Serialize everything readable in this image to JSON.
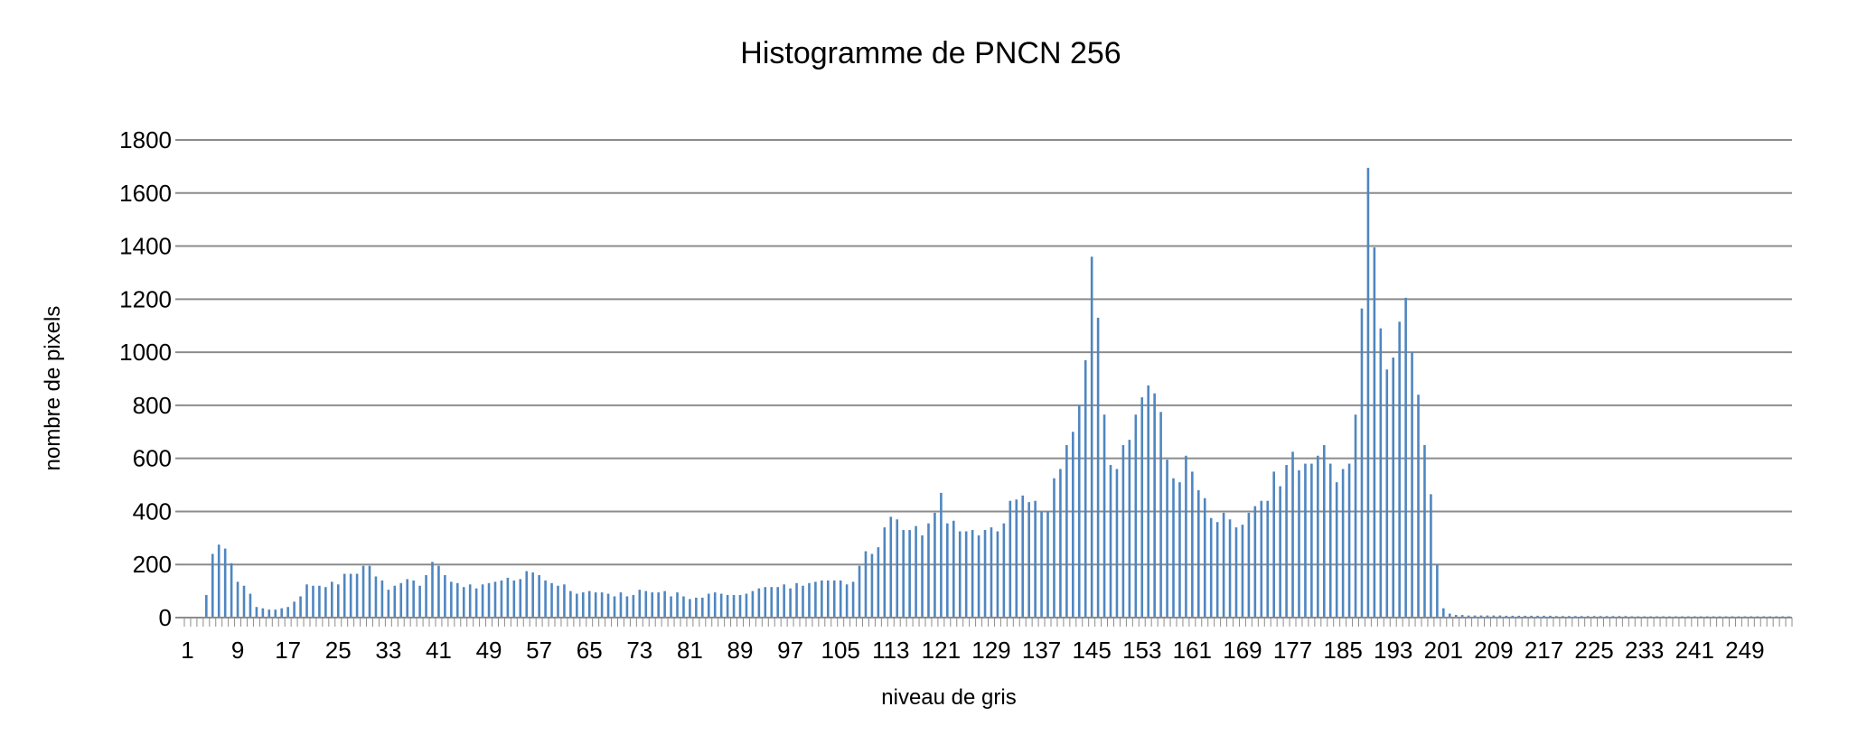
{
  "chart_data": {
    "type": "bar",
    "title": "Histogramme de PNCN 256",
    "xlabel": "niveau de gris",
    "ylabel": "nombre  de  pixels",
    "ylim": [
      0,
      1800
    ],
    "yticks": [
      0,
      200,
      400,
      600,
      800,
      1000,
      1200,
      1400,
      1600,
      1800
    ],
    "xtick_labels": [
      "1",
      "9",
      "17",
      "25",
      "33",
      "41",
      "49",
      "57",
      "65",
      "73",
      "81",
      "89",
      "97",
      "105",
      "113",
      "121",
      "129",
      "137",
      "145",
      "153",
      "161",
      "169",
      "177",
      "185",
      "193",
      "201",
      "209",
      "217",
      "225",
      "233",
      "241",
      "249"
    ],
    "grid": "horizontal",
    "legend": "none",
    "color": "#4f86c0",
    "x": [
      1,
      2,
      3,
      4,
      5,
      6,
      7,
      8,
      9,
      10,
      11,
      12,
      13,
      14,
      15,
      16,
      17,
      18,
      19,
      20,
      21,
      22,
      23,
      24,
      25,
      26,
      27,
      28,
      29,
      30,
      31,
      32,
      33,
      34,
      35,
      36,
      37,
      38,
      39,
      40,
      41,
      42,
      43,
      44,
      45,
      46,
      47,
      48,
      49,
      50,
      51,
      52,
      53,
      54,
      55,
      56,
      57,
      58,
      59,
      60,
      61,
      62,
      63,
      64,
      65,
      66,
      67,
      68,
      69,
      70,
      71,
      72,
      73,
      74,
      75,
      76,
      77,
      78,
      79,
      80,
      81,
      82,
      83,
      84,
      85,
      86,
      87,
      88,
      89,
      90,
      91,
      92,
      93,
      94,
      95,
      96,
      97,
      98,
      99,
      100,
      101,
      102,
      103,
      104,
      105,
      106,
      107,
      108,
      109,
      110,
      111,
      112,
      113,
      114,
      115,
      116,
      117,
      118,
      119,
      120,
      121,
      122,
      123,
      124,
      125,
      126,
      127,
      128,
      129,
      130,
      131,
      132,
      133,
      134,
      135,
      136,
      137,
      138,
      139,
      140,
      141,
      142,
      143,
      144,
      145,
      146,
      147,
      148,
      149,
      150,
      151,
      152,
      153,
      154,
      155,
      156,
      157,
      158,
      159,
      160,
      161,
      162,
      163,
      164,
      165,
      166,
      167,
      168,
      169,
      170,
      171,
      172,
      173,
      174,
      175,
      176,
      177,
      178,
      179,
      180,
      181,
      182,
      183,
      184,
      185,
      186,
      187,
      188,
      189,
      190,
      191,
      192,
      193,
      194,
      195,
      196,
      197,
      198,
      199,
      200,
      201,
      202,
      203,
      204,
      205,
      206,
      207,
      208,
      209,
      210,
      211,
      212,
      213,
      214,
      215,
      216,
      217,
      218,
      219,
      220,
      221,
      222,
      223,
      224,
      225,
      226,
      227,
      228,
      229,
      230,
      231,
      232,
      233,
      234,
      235,
      236,
      237,
      238,
      239,
      240,
      241,
      242,
      243,
      244,
      245,
      246,
      247,
      248,
      249,
      250,
      251,
      252,
      253,
      254,
      255,
      256
    ],
    "values": [
      0,
      0,
      0,
      85,
      240,
      275,
      260,
      205,
      135,
      120,
      90,
      40,
      35,
      30,
      30,
      35,
      40,
      60,
      80,
      125,
      120,
      120,
      115,
      135,
      125,
      165,
      165,
      165,
      195,
      195,
      155,
      140,
      105,
      120,
      130,
      145,
      140,
      120,
      160,
      210,
      195,
      160,
      135,
      130,
      115,
      125,
      110,
      125,
      130,
      135,
      140,
      150,
      140,
      145,
      175,
      170,
      160,
      140,
      130,
      120,
      125,
      100,
      90,
      95,
      100,
      95,
      95,
      90,
      80,
      95,
      80,
      85,
      105,
      100,
      95,
      95,
      100,
      80,
      95,
      80,
      70,
      75,
      75,
      90,
      95,
      90,
      85,
      85,
      85,
      90,
      100,
      110,
      115,
      115,
      115,
      125,
      110,
      130,
      120,
      130,
      135,
      140,
      140,
      140,
      140,
      125,
      135,
      195,
      250,
      240,
      265,
      340,
      380,
      370,
      330,
      330,
      345,
      310,
      355,
      395,
      470,
      355,
      365,
      325,
      325,
      330,
      310,
      330,
      340,
      325,
      355,
      440,
      445,
      460,
      435,
      440,
      400,
      400,
      525,
      560,
      650,
      700,
      800,
      970,
      1360,
      1130,
      765,
      575,
      560,
      650,
      670,
      765,
      830,
      875,
      845,
      775,
      595,
      525,
      510,
      610,
      550,
      480,
      450,
      375,
      360,
      395,
      370,
      340,
      350,
      395,
      420,
      440,
      440,
      550,
      495,
      575,
      625,
      555,
      580,
      580,
      610,
      650,
      580,
      510,
      560,
      580,
      765,
      1165,
      1695,
      1395,
      1090,
      935,
      980,
      1115,
      1205,
      1000,
      840,
      650,
      465,
      200,
      35,
      15,
      10,
      10,
      8,
      8,
      8,
      8,
      8,
      8,
      7,
      7,
      7,
      7,
      7,
      7,
      7,
      7,
      6,
      6,
      6,
      6,
      6,
      6,
      6,
      6,
      6,
      6,
      6,
      6,
      5,
      5,
      5,
      5,
      5,
      5,
      5,
      5,
      5,
      5,
      5,
      5,
      5,
      5,
      5,
      5,
      5,
      5,
      5,
      5,
      5,
      5,
      5,
      5,
      5,
      5
    ]
  }
}
